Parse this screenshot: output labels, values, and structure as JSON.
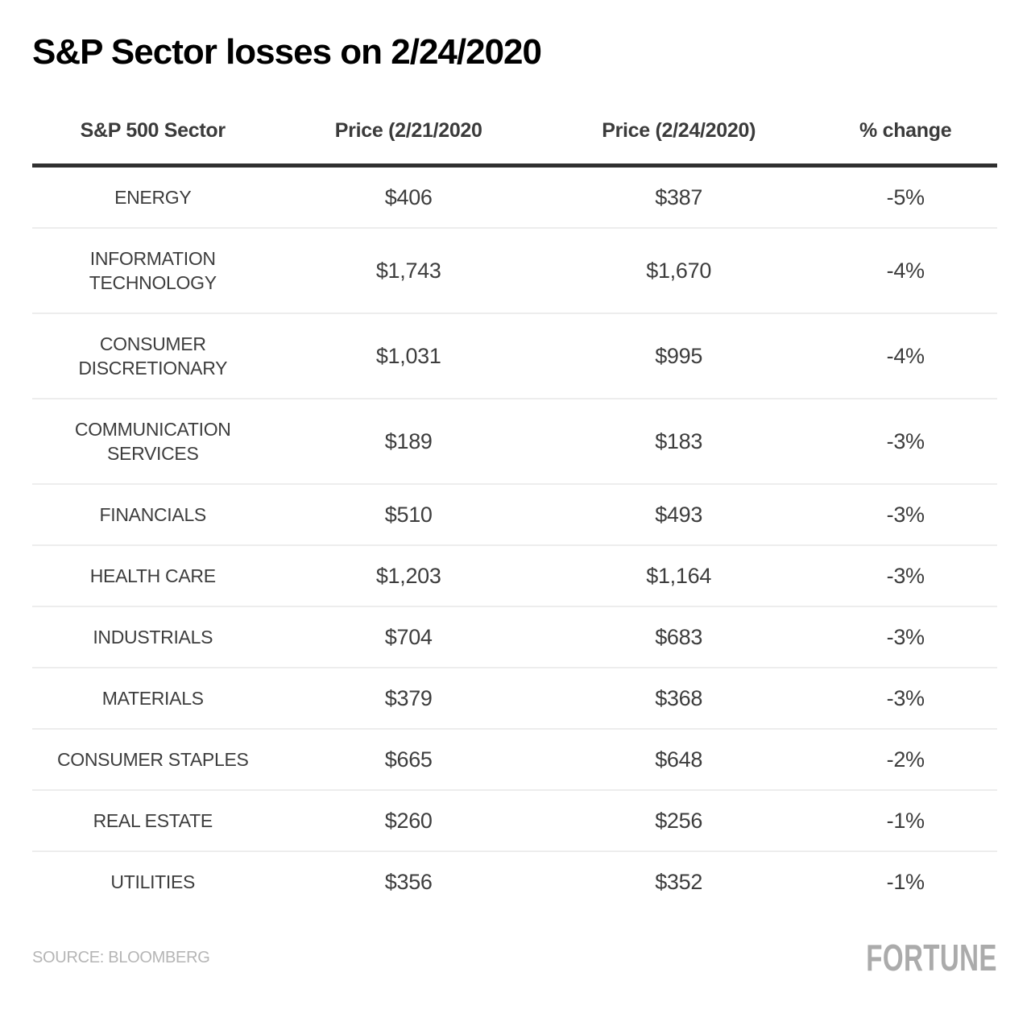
{
  "title": "S&P Sector losses on 2/24/2020",
  "table": {
    "headers": [
      "S&P 500 Sector",
      "Price (2/21/2020",
      "Price (2/24/2020)",
      "% change"
    ],
    "rows": [
      {
        "sector": "ENERGY",
        "price_0221": "$406",
        "price_0224": "$387",
        "pct_change": "-5%"
      },
      {
        "sector": "INFORMATION TECHNOLOGY",
        "price_0221": "$1,743",
        "price_0224": "$1,670",
        "pct_change": "-4%"
      },
      {
        "sector": "CONSUMER DISCRETIONARY",
        "price_0221": "$1,031",
        "price_0224": "$995",
        "pct_change": "-4%"
      },
      {
        "sector": "COMMUNICATION SERVICES",
        "price_0221": "$189",
        "price_0224": "$183",
        "pct_change": "-3%"
      },
      {
        "sector": "FINANCIALS",
        "price_0221": "$510",
        "price_0224": "$493",
        "pct_change": "-3%"
      },
      {
        "sector": "HEALTH CARE",
        "price_0221": "$1,203",
        "price_0224": "$1,164",
        "pct_change": "-3%"
      },
      {
        "sector": "INDUSTRIALS",
        "price_0221": "$704",
        "price_0224": "$683",
        "pct_change": "-3%"
      },
      {
        "sector": "MATERIALS",
        "price_0221": "$379",
        "price_0224": "$368",
        "pct_change": "-3%"
      },
      {
        "sector": "CONSUMER STAPLES",
        "price_0221": "$665",
        "price_0224": "$648",
        "pct_change": "-2%"
      },
      {
        "sector": "REAL ESTATE",
        "price_0221": "$260",
        "price_0224": "$256",
        "pct_change": "-1%"
      },
      {
        "sector": "UTILITIES",
        "price_0221": "$356",
        "price_0224": "$352",
        "pct_change": "-1%"
      }
    ]
  },
  "footer": {
    "source": "SOURCE: BLOOMBERG",
    "brand": "FORTUNE"
  },
  "colors": {
    "title_text": "#000000",
    "header_text": "#3b3b3b",
    "body_text": "#3d3d3d",
    "thick_rule": "#303030",
    "row_divider": "#ededed",
    "source_text": "#b5b5b5",
    "brand_logo": "#ababab",
    "background": "#ffffff"
  },
  "chart_data": {
    "type": "table",
    "title": "S&P Sector losses on 2/24/2020",
    "columns": [
      "S&P 500 Sector",
      "Price (2/21/2020",
      "Price (2/24/2020)",
      "% change"
    ],
    "rows": [
      [
        "ENERGY",
        "$406",
        "$387",
        "-5%"
      ],
      [
        "INFORMATION TECHNOLOGY",
        "$1,743",
        "$1,670",
        "-4%"
      ],
      [
        "CONSUMER DISCRETIONARY",
        "$1,031",
        "$995",
        "-4%"
      ],
      [
        "COMMUNICATION SERVICES",
        "$189",
        "$183",
        "-3%"
      ],
      [
        "FINANCIALS",
        "$510",
        "$493",
        "-3%"
      ],
      [
        "HEALTH CARE",
        "$1,203",
        "$1,164",
        "-3%"
      ],
      [
        "INDUSTRIALS",
        "$704",
        "$683",
        "-3%"
      ],
      [
        "MATERIALS",
        "$379",
        "$368",
        "-3%"
      ],
      [
        "CONSUMER STAPLES",
        "$665",
        "$648",
        "-2%"
      ],
      [
        "REAL ESTATE",
        "$260",
        "$256",
        "-1%"
      ],
      [
        "UTILITIES",
        "$356",
        "$352",
        "-1%"
      ]
    ],
    "numeric": {
      "price_0221": [
        406,
        1743,
        1031,
        189,
        510,
        1203,
        704,
        379,
        665,
        260,
        356
      ],
      "price_0224": [
        387,
        1670,
        995,
        183,
        493,
        1164,
        683,
        368,
        648,
        256,
        352
      ],
      "pct_change": [
        -5,
        -4,
        -4,
        -3,
        -3,
        -3,
        -3,
        -3,
        -2,
        -1,
        -1
      ]
    },
    "source": "SOURCE: BLOOMBERG",
    "brand": "FORTUNE"
  }
}
